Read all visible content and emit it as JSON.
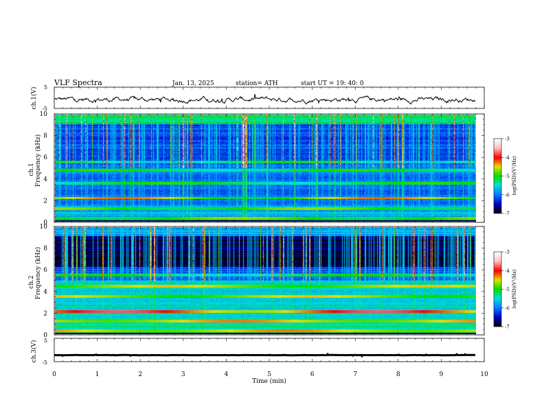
{
  "header": {
    "title": "VLF  Spectra",
    "date": "Jan. 13, 2025",
    "station": "station= ATH",
    "start": "start  UT =   19: 40: 0"
  },
  "chart_data": [
    {
      "type": "line",
      "ylabel": "ch.1(V)",
      "ylim": [
        -5,
        5
      ],
      "ytick_labels": [
        "5",
        "-5"
      ],
      "xlim": [
        0,
        10
      ],
      "series": [
        {
          "name": "",
          "mean": -0.8,
          "amplitude": 0.8
        }
      ]
    },
    {
      "type": "heatmap",
      "ylabel_top": "ch.1",
      "ylabel": "Frequency (kHz)",
      "ylim": [
        0,
        10
      ],
      "ytick_labels": [
        "0",
        "2",
        "4",
        "6",
        "8",
        "10"
      ],
      "xlim": [
        0,
        9.8
      ],
      "bands_khz": [
        2.2,
        1.2,
        0.3,
        3.6,
        4.8,
        5.6
      ],
      "colorbar": {
        "label": "log(PSD)(V²/Hz)",
        "range": [
          -7,
          -3
        ],
        "tick_labels": [
          "-3",
          "-4",
          "-5",
          "-6",
          "-7"
        ]
      }
    },
    {
      "type": "heatmap",
      "ylabel_top": "ch.2",
      "ylabel": "Frequency (kHz)",
      "ylim": [
        0,
        10
      ],
      "ytick_labels": [
        "0",
        "2",
        "4",
        "6",
        "8",
        "10"
      ],
      "xlim": [
        0,
        9.8
      ],
      "bands_khz": [
        2.1,
        3.5,
        1.2,
        4.5,
        5.5,
        0.3
      ],
      "colorbar": {
        "label": "log(PSD)(V²/Hz)",
        "range": [
          -7,
          -3
        ],
        "tick_labels": [
          "-3",
          "-4",
          "-5",
          "-6",
          "-7"
        ]
      }
    },
    {
      "type": "line",
      "ylabel": "ch.3(V)",
      "ylim": [
        -5,
        5
      ],
      "ytick_labels": [
        "5",
        "-5"
      ],
      "xlim": [
        0,
        10
      ],
      "series": [
        {
          "name": "",
          "mean": -2.2,
          "amplitude": 0.2
        }
      ]
    }
  ],
  "xaxis": {
    "label": "Time  (min)",
    "range": [
      0,
      10
    ],
    "tick_labels": [
      "0",
      "1",
      "2",
      "3",
      "4",
      "5",
      "6",
      "7",
      "8",
      "9",
      "10"
    ]
  },
  "colors": {
    "background": "#ffffff",
    "axis": "#000000",
    "colormap": [
      "#000000",
      "#0000d0",
      "#0080ff",
      "#00e0e0",
      "#00e000",
      "#e0e000",
      "#ff0000",
      "#ffc0c0",
      "#ffffff"
    ]
  }
}
